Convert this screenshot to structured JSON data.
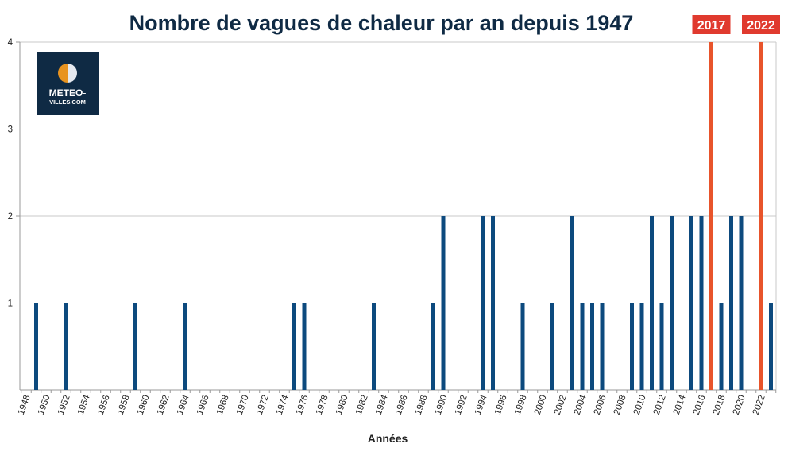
{
  "chart_data": {
    "type": "bar",
    "title": "Nombre de vagues de chaleur par an depuis 1947",
    "xlabel": "Années",
    "ylabel": "",
    "ylim": [
      0,
      4
    ],
    "yticks": [
      "1",
      "2",
      "3",
      "4"
    ],
    "grid": true,
    "x_tick_labels": [
      "1948",
      "1950",
      "1952",
      "1954",
      "1956",
      "1958",
      "1960",
      "1962",
      "1964",
      "1966",
      "1968",
      "1970",
      "1972",
      "1974",
      "1976",
      "1978",
      "1980",
      "1982",
      "1984",
      "1986",
      "1988",
      "1990",
      "1992",
      "1994",
      "1996",
      "1998",
      "2000",
      "2002",
      "2004",
      "2006",
      "2008",
      "2010",
      "2012",
      "2014",
      "2016",
      "2018",
      "2020",
      "2022"
    ],
    "bar_color": "#0d4a7e",
    "highlight_color": "#e8542b",
    "callout_color": "#e03a2e",
    "points": [
      {
        "year": 1949,
        "value": 1
      },
      {
        "year": 1952,
        "value": 1
      },
      {
        "year": 1959,
        "value": 1
      },
      {
        "year": 1964,
        "value": 1
      },
      {
        "year": 1975,
        "value": 1
      },
      {
        "year": 1976,
        "value": 1
      },
      {
        "year": 1983,
        "value": 1
      },
      {
        "year": 1989,
        "value": 1
      },
      {
        "year": 1990,
        "value": 2
      },
      {
        "year": 1994,
        "value": 2
      },
      {
        "year": 1995,
        "value": 2
      },
      {
        "year": 1998,
        "value": 1
      },
      {
        "year": 2001,
        "value": 1
      },
      {
        "year": 2003,
        "value": 2
      },
      {
        "year": 2004,
        "value": 1
      },
      {
        "year": 2005,
        "value": 1
      },
      {
        "year": 2006,
        "value": 1
      },
      {
        "year": 2009,
        "value": 1
      },
      {
        "year": 2010,
        "value": 1
      },
      {
        "year": 2011,
        "value": 2
      },
      {
        "year": 2012,
        "value": 1
      },
      {
        "year": 2013,
        "value": 2
      },
      {
        "year": 2015,
        "value": 2
      },
      {
        "year": 2016,
        "value": 2
      },
      {
        "year": 2017,
        "value": 4,
        "highlight": true
      },
      {
        "year": 2018,
        "value": 1
      },
      {
        "year": 2019,
        "value": 2
      },
      {
        "year": 2020,
        "value": 2
      },
      {
        "year": 2022,
        "value": 4,
        "highlight": true
      },
      {
        "year": 2023,
        "value": 1
      }
    ],
    "callouts": [
      "2017",
      "2022"
    ]
  },
  "logo": {
    "line1": "METEO-",
    "line2": "VILLES.COM",
    "bg_color": "#0f2a44",
    "accent_color": "#e8931f"
  }
}
